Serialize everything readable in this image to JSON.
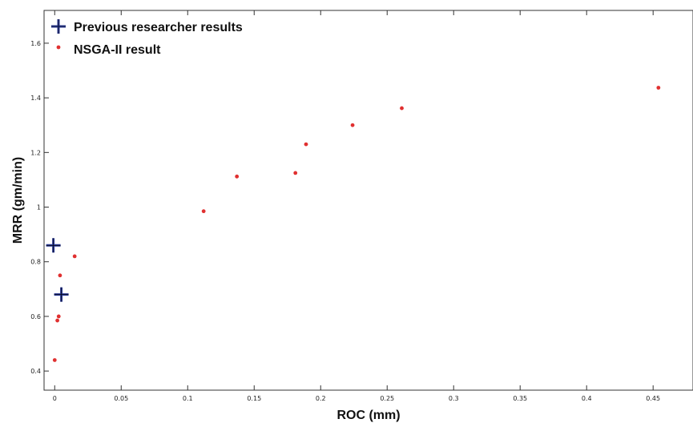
{
  "chart_data": {
    "type": "scatter",
    "xlabel": "ROC (mm)",
    "ylabel": "MRR (gm/min)",
    "xlim": [
      -0.008,
      0.48
    ],
    "ylim": [
      0.33,
      1.72
    ],
    "x_ticks": [
      {
        "value": 0,
        "label": "0"
      },
      {
        "value": 0.05,
        "label": "0.05"
      },
      {
        "value": 0.1,
        "label": "0.1"
      },
      {
        "value": 0.15,
        "label": "0.15"
      },
      {
        "value": 0.2,
        "label": "0.2"
      },
      {
        "value": 0.25,
        "label": "0.25"
      },
      {
        "value": 0.3,
        "label": "0.3"
      },
      {
        "value": 0.35,
        "label": "0.35"
      },
      {
        "value": 0.4,
        "label": "0.4"
      },
      {
        "value": 0.45,
        "label": "0.45"
      }
    ],
    "y_ticks": [
      {
        "value": 0.4,
        "label": "0.4"
      },
      {
        "value": 0.6,
        "label": "0.6"
      },
      {
        "value": 0.8,
        "label": "0.8"
      },
      {
        "value": 1.0,
        "label": "1"
      },
      {
        "value": 1.2,
        "label": "1.2"
      },
      {
        "value": 1.4,
        "label": "1.4"
      },
      {
        "value": 1.6,
        "label": "1.6"
      }
    ],
    "grid": false,
    "legend_position": "top-left",
    "series": [
      {
        "name": "Previous researcher results",
        "marker": "plus",
        "color": "#2b3a94",
        "points": [
          {
            "x": -0.001,
            "y": 0.86
          },
          {
            "x": 0.005,
            "y": 0.68
          }
        ]
      },
      {
        "name": "NSGA-II result",
        "marker": "dot",
        "color": "#e03030",
        "points": [
          {
            "x": 0.0,
            "y": 0.44
          },
          {
            "x": 0.002,
            "y": 0.585
          },
          {
            "x": 0.003,
            "y": 0.6
          },
          {
            "x": 0.004,
            "y": 0.75
          },
          {
            "x": 0.015,
            "y": 0.82
          },
          {
            "x": 0.112,
            "y": 0.985
          },
          {
            "x": 0.137,
            "y": 1.112
          },
          {
            "x": 0.181,
            "y": 1.125
          },
          {
            "x": 0.189,
            "y": 1.23
          },
          {
            "x": 0.224,
            "y": 1.3
          },
          {
            "x": 0.261,
            "y": 1.362
          },
          {
            "x": 0.454,
            "y": 1.437
          }
        ]
      }
    ]
  }
}
